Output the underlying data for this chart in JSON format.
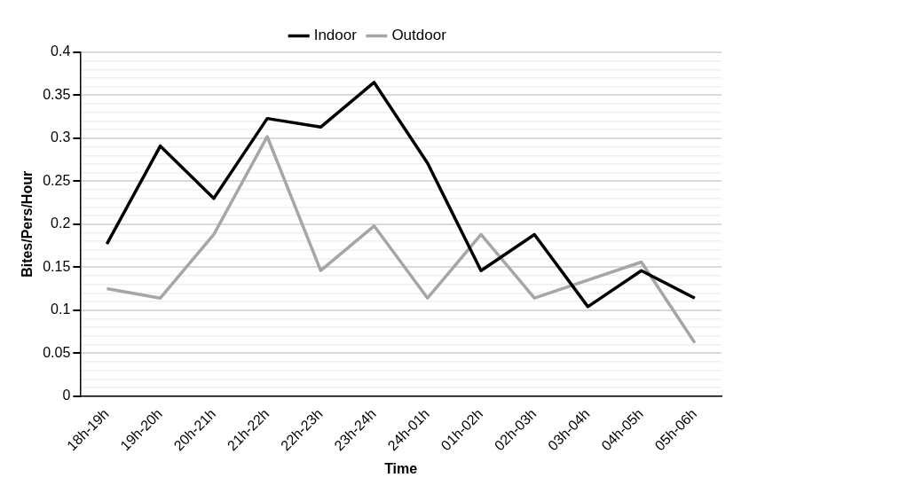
{
  "chart_data": {
    "type": "line",
    "xlabel": "Time",
    "ylabel": "Bites/Pers/Hour",
    "categories": [
      "18h-19h",
      "19h-20h",
      "20h-21h",
      "21h-22h",
      "22h-23h",
      "23h-24h",
      "24h-01h",
      "01h-02h",
      "02h-03h",
      "03h-04h",
      "04h-05h",
      "05h-06h"
    ],
    "series": [
      {
        "name": "Indoor",
        "color": "#000000",
        "values": [
          0.177,
          0.291,
          0.23,
          0.323,
          0.313,
          0.365,
          0.271,
          0.146,
          0.188,
          0.104,
          0.146,
          0.114
        ]
      },
      {
        "name": "Outdoor",
        "color": "#a6a6a6",
        "values": [
          0.125,
          0.114,
          0.188,
          0.302,
          0.146,
          0.198,
          0.114,
          0.188,
          0.114,
          0.135,
          0.156,
          0.062
        ]
      }
    ],
    "ylim": [
      0,
      0.4
    ],
    "yticks": [
      0,
      {
        "value": 0.01,
        "label": null
      },
      {
        "value": 0.02,
        "label": null
      },
      {
        "value": 0.03,
        "label": null
      },
      {
        "value": 0.04,
        "label": null
      },
      0.05,
      {
        "value": 0.06,
        "label": null
      },
      {
        "value": 0.07,
        "label": null
      },
      {
        "value": 0.08,
        "label": null
      },
      {
        "value": 0.09,
        "label": null
      },
      0.1,
      {
        "value": 0.11,
        "label": null
      },
      {
        "value": 0.12,
        "label": null
      },
      {
        "value": 0.13,
        "label": null
      },
      {
        "value": 0.14,
        "label": null
      },
      0.15,
      {
        "value": 0.16,
        "label": null
      },
      {
        "value": 0.17,
        "label": null
      },
      {
        "value": 0.18,
        "label": null
      },
      {
        "value": 0.19,
        "label": null
      },
      0.2,
      {
        "value": 0.21,
        "label": null
      },
      {
        "value": 0.22,
        "label": null
      },
      {
        "value": 0.23,
        "label": null
      },
      {
        "value": 0.24,
        "label": null
      },
      0.25,
      {
        "value": 0.26,
        "label": null
      },
      {
        "value": 0.27,
        "label": null
      },
      {
        "value": 0.28,
        "label": null
      },
      {
        "value": 0.29,
        "label": null
      },
      0.3,
      {
        "value": 0.31,
        "label": null
      },
      {
        "value": 0.32,
        "label": null
      },
      {
        "value": 0.33,
        "label": null
      },
      {
        "value": 0.34,
        "label": null
      },
      0.35,
      {
        "value": 0.36,
        "label": null
      },
      {
        "value": 0.37,
        "label": null
      },
      {
        "value": 0.38,
        "label": null
      },
      {
        "value": 0.39,
        "label": null
      },
      0.4
    ],
    "grid": "y",
    "legend": "top",
    "marker": "none",
    "line_style": "solid"
  }
}
